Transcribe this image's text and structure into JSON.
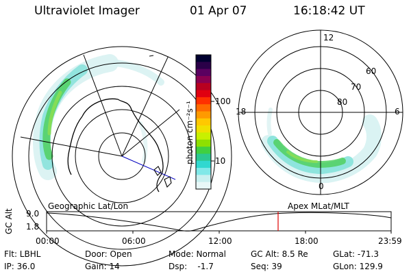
{
  "header": {
    "instrument": "Ultraviolet Imager",
    "date": "01 Apr 07",
    "time": "16:18:42 UT"
  },
  "colorbar": {
    "unit": "photon cm⁻²s⁻¹",
    "ticks": [
      "100",
      "10"
    ],
    "colors": [
      "#000030",
      "#2a0048",
      "#5a0060",
      "#8a0050",
      "#b80020",
      "#e00010",
      "#ff3000",
      "#ff6a00",
      "#ff9a00",
      "#ffc800",
      "#f0e000",
      "#c8f000",
      "#8ee000",
      "#40d040",
      "#2cc890",
      "#30d8d0",
      "#80e8e8",
      "#c8f0f0",
      "#e8f8f8"
    ]
  },
  "right_panel": {
    "lat_labels": [
      "60",
      "70",
      "80"
    ],
    "mlt_labels": [
      "12",
      "18",
      "6",
      "0"
    ]
  },
  "timeline": {
    "geo_label": "Geographic Lat/Lon",
    "apex_label": "Apex  MLat/MLT",
    "alt_label": "GC Alt",
    "y_ticks": [
      "9.0",
      "1.8"
    ],
    "x_ticks": [
      "00:00",
      "06:00",
      "12:00",
      "18:00",
      "23:59"
    ],
    "marker_color": "#e00000"
  },
  "info": {
    "filter": "Flt: LBHL",
    "ip": "IP: 36.0",
    "door": "Door: Open",
    "gain": "Gain: 14",
    "mode": "Mode: Normal",
    "dsp": "Dsp:    -1.7",
    "gc_alt": "GC Alt: 8.5 Re",
    "seq": "Seq: 39",
    "glat": "GLat: -71.3",
    "glon": "GLon: 129.9"
  }
}
